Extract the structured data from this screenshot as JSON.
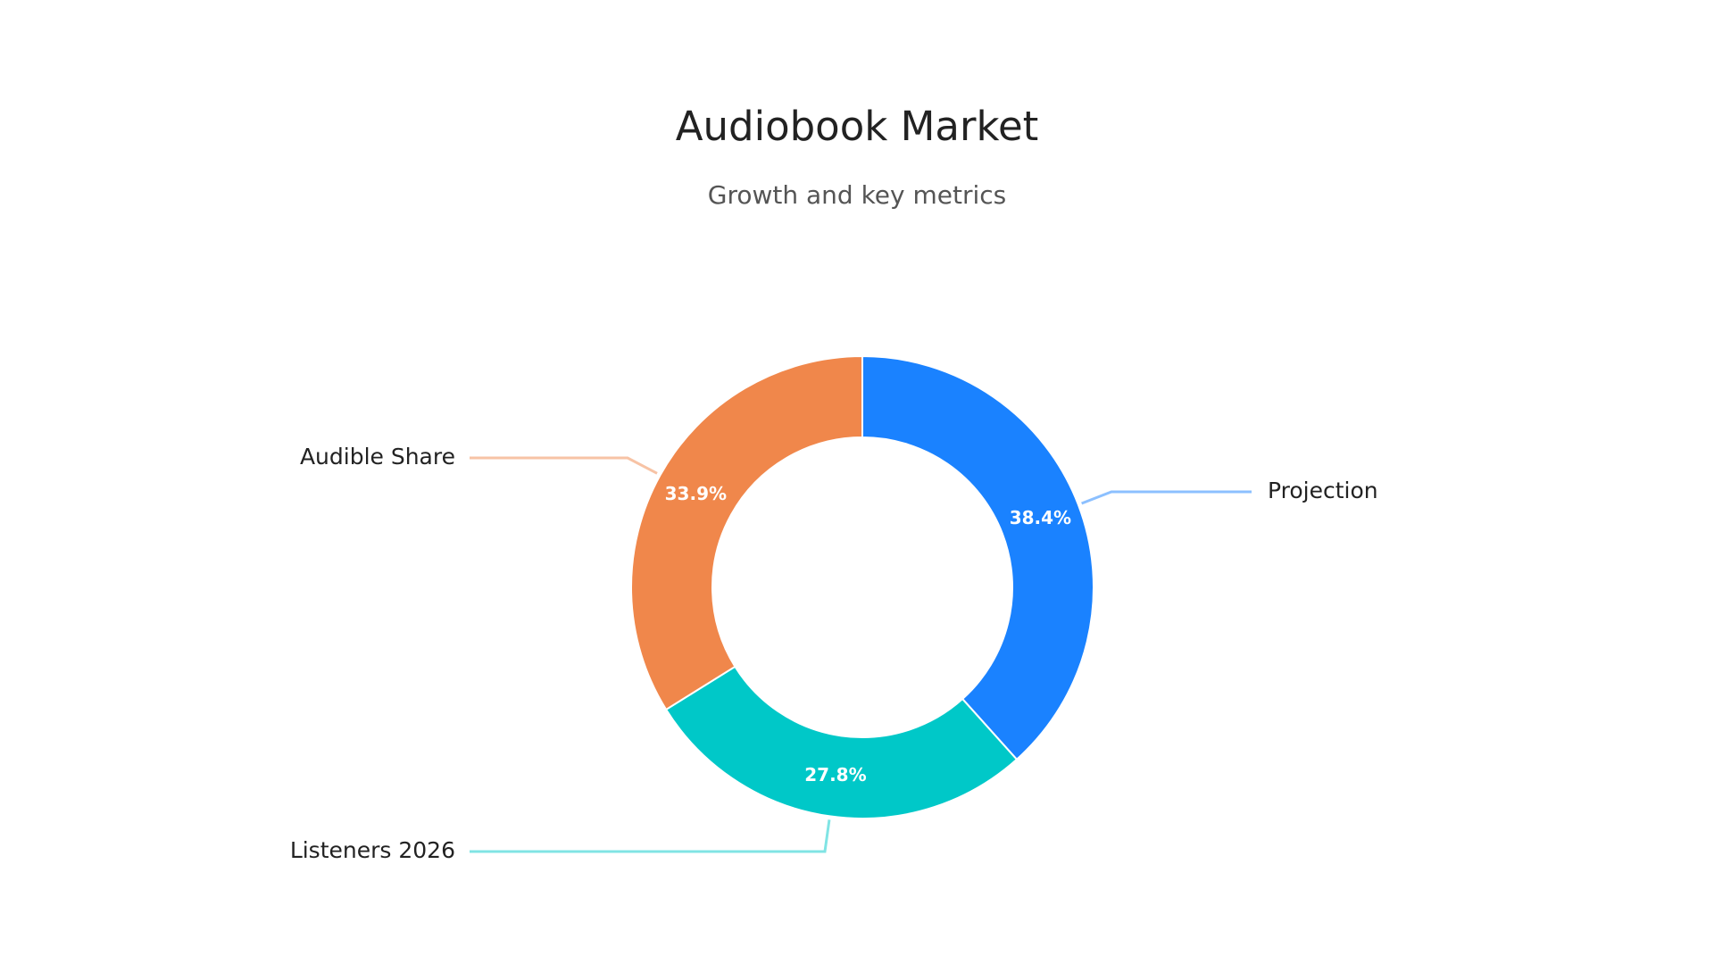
{
  "chart_data": {
    "type": "pie",
    "variant": "donut",
    "title": "Audiobook Market",
    "subtitle": "Growth and key metrics",
    "slices": [
      {
        "label": "Projection",
        "value": 38.4,
        "value_label": "38.4%",
        "color": "#1a82ff",
        "leader_color": "#8cc0ff"
      },
      {
        "label": "Listeners 2026",
        "value": 27.8,
        "value_label": "27.8%",
        "color": "#00c8c8",
        "leader_color": "#80e4e4"
      },
      {
        "label": "Audible Share",
        "value": 33.9,
        "value_label": "33.9%",
        "color": "#f0874b",
        "leader_color": "#f7c3a5"
      }
    ],
    "start_angle": "top",
    "direction": "clockwise",
    "legend": "none"
  }
}
